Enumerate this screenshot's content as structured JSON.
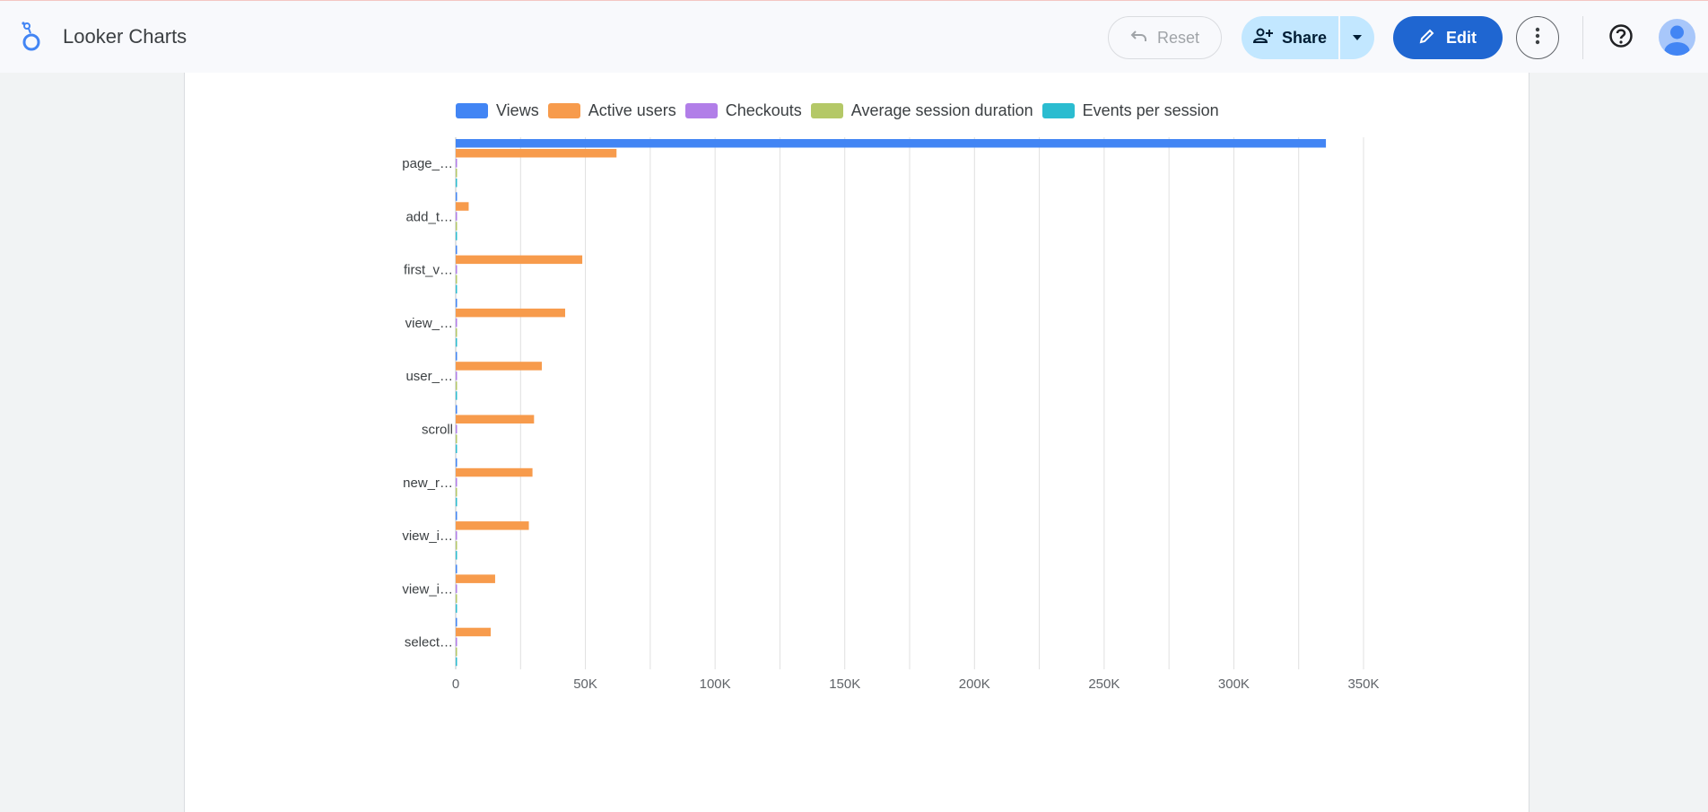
{
  "app": {
    "title": "Looker Charts"
  },
  "toolbar": {
    "reset_label": "Reset",
    "share_label": "Share",
    "edit_label": "Edit"
  },
  "icons": {
    "logo": "looker-logo-icon",
    "reset": "undo-icon",
    "share": "add-person-icon",
    "share_dropdown": "caret-down-icon",
    "edit": "pencil-icon",
    "more": "more-vert-icon",
    "help": "help-circle-icon",
    "avatar": "account-avatar-icon"
  },
  "colors": {
    "views": "#4285f4",
    "active_users": "#f79b4c",
    "checkouts": "#b17ee8",
    "average_session_duration": "#b4c867",
    "events_per_session": "#2bbcd0",
    "primary": "#1f66d1",
    "share_bg": "#c2e7ff"
  },
  "chart_data": {
    "type": "bar",
    "orientation": "horizontal",
    "categories": [
      "page_…",
      "add_t…",
      "first_v…",
      "view_…",
      "user_…",
      "scroll",
      "new_r…",
      "view_i…",
      "view_i…",
      "select…"
    ],
    "series": [
      {
        "name": "Views",
        "color": "#4285f4",
        "values": [
          335500,
          0,
          0,
          0,
          0,
          0,
          0,
          0,
          0,
          0
        ]
      },
      {
        "name": "Active users",
        "color": "#f79b4c",
        "values": [
          62000,
          5000,
          48800,
          42200,
          33200,
          30200,
          29600,
          28200,
          15200,
          13500
        ]
      },
      {
        "name": "Checkouts",
        "color": "#b17ee8",
        "values": [
          0,
          0,
          0,
          0,
          0,
          0,
          0,
          0,
          0,
          0
        ]
      },
      {
        "name": "Average session duration",
        "color": "#b4c867",
        "values": [
          0,
          0,
          0,
          0,
          0,
          0,
          0,
          0,
          0,
          0
        ]
      },
      {
        "name": "Events per session",
        "color": "#2bbcd0",
        "values": [
          0,
          0,
          0,
          0,
          0,
          0,
          0,
          0,
          0,
          0
        ]
      }
    ],
    "x_ticks": [
      "0",
      "50K",
      "100K",
      "150K",
      "200K",
      "250K",
      "300K",
      "350K"
    ],
    "xlim": [
      0,
      350000
    ],
    "grid": true,
    "legend_position": "top"
  }
}
